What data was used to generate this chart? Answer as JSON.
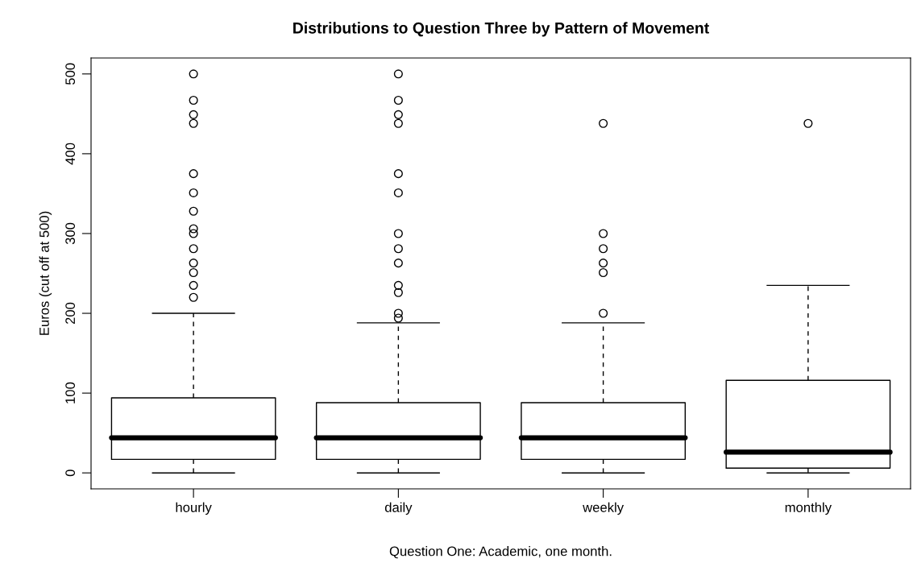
{
  "chart_data": {
    "type": "box",
    "title": "Distributions to Question Three by Pattern of Movement",
    "xlabel": "Question One: Academic, one month.",
    "ylabel": "Euros (cut off at 500)",
    "categories": [
      "hourly",
      "daily",
      "weekly",
      "monthly"
    ],
    "boxes": [
      {
        "low": 0,
        "q1": 17,
        "median": 44,
        "q3": 94,
        "high": 200,
        "outliers": [
          500,
          467,
          449,
          438,
          375,
          351,
          328,
          306,
          300,
          281,
          263,
          251,
          235,
          220
        ]
      },
      {
        "low": 0,
        "q1": 17,
        "median": 44,
        "q3": 88,
        "high": 188,
        "outliers": [
          500,
          467,
          449,
          438,
          375,
          351,
          300,
          281,
          263,
          235,
          226,
          200,
          194
        ]
      },
      {
        "low": 0,
        "q1": 17,
        "median": 44,
        "q3": 88,
        "high": 188,
        "outliers": [
          438,
          300,
          281,
          263,
          251,
          200
        ]
      },
      {
        "low": 0,
        "q1": 6,
        "median": 26,
        "q3": 116,
        "high": 235,
        "outliers": [
          438
        ]
      }
    ],
    "color": "#000000",
    "ylim": [
      -20,
      520
    ],
    "yticks": [
      0,
      100,
      200,
      300,
      400,
      500
    ],
    "grid": false
  }
}
